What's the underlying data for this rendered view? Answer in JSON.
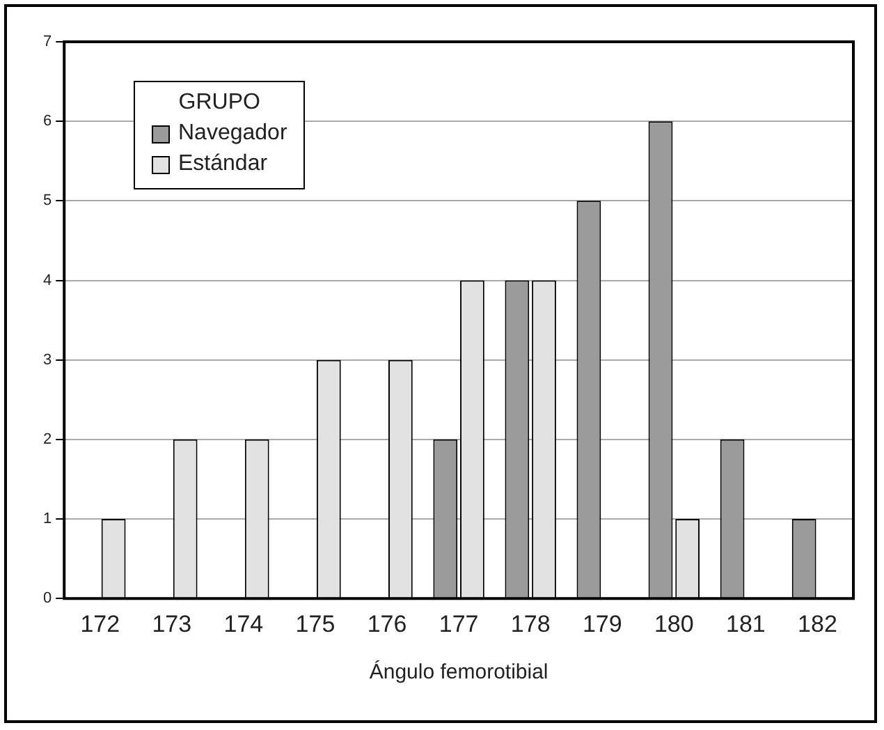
{
  "chart_data": {
    "type": "bar",
    "xlabel": "Ángulo femorotibial",
    "legend_title": "GRUPO",
    "legend": "top left",
    "grid": "y",
    "categories": [
      "172",
      "173",
      "174",
      "175",
      "176",
      "177",
      "178",
      "179",
      "180",
      "181",
      "182"
    ],
    "ylim": [
      0,
      7
    ],
    "yticks": [
      0,
      1,
      2,
      3,
      4,
      5,
      6,
      7
    ],
    "series": [
      {
        "name": "Navegador",
        "color": "#9b9b9b",
        "values": [
          0,
          0,
          0,
          0,
          0,
          2,
          4,
          5,
          6,
          2,
          1
        ]
      },
      {
        "name": "Estándar",
        "color": "#e2e2e2",
        "values": [
          1,
          2,
          2,
          3,
          3,
          4,
          4,
          0,
          1,
          0,
          0
        ]
      }
    ]
  }
}
